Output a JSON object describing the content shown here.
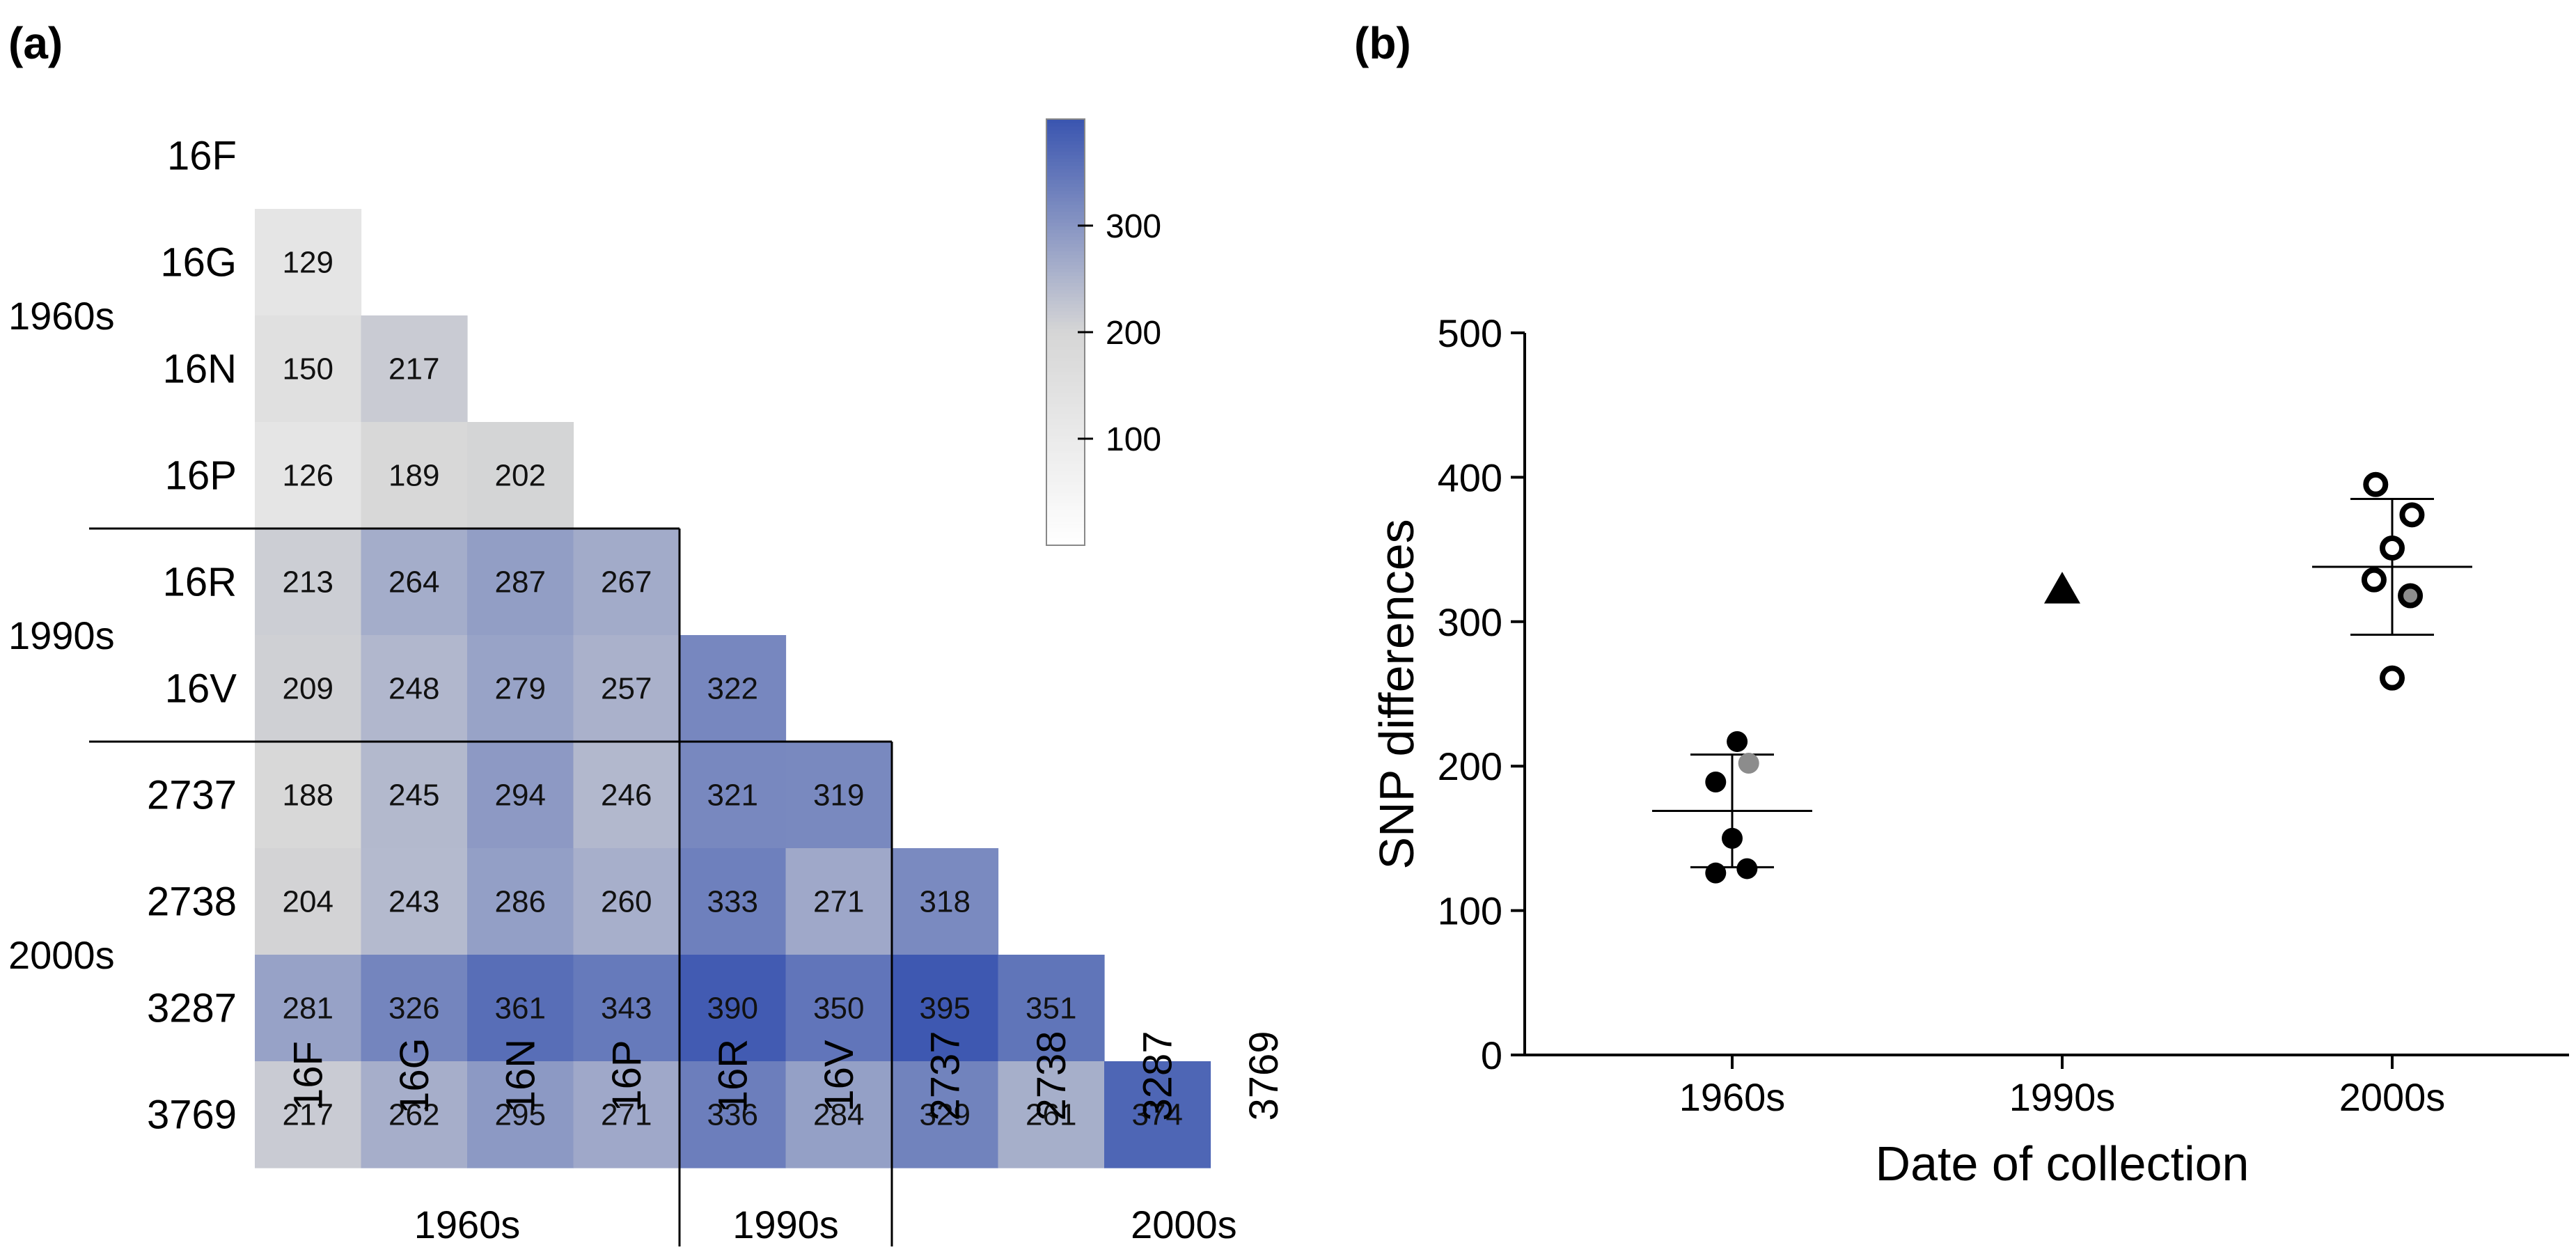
{
  "panels": {
    "a_label": "(a)",
    "b_label": "(b)"
  },
  "chart_data": [
    {
      "type": "heatmap",
      "title": "",
      "labels": [
        "16F",
        "16G",
        "16N",
        "16P",
        "16R",
        "16V",
        "2737",
        "2738",
        "3287",
        "3769"
      ],
      "groups": [
        {
          "name": "1960s",
          "members": [
            "16F",
            "16G",
            "16N",
            "16P"
          ]
        },
        {
          "name": "1990s",
          "members": [
            "16R",
            "16V"
          ]
        },
        {
          "name": "2000s",
          "members": [
            "2737",
            "2738",
            "3287",
            "3769"
          ]
        }
      ],
      "values": [
        [],
        [
          129
        ],
        [
          150,
          217
        ],
        [
          126,
          189,
          202
        ],
        [
          213,
          264,
          287,
          267
        ],
        [
          209,
          248,
          279,
          257,
          322
        ],
        [
          188,
          245,
          294,
          246,
          321,
          319
        ],
        [
          204,
          243,
          286,
          260,
          333,
          271,
          318
        ],
        [
          281,
          326,
          361,
          343,
          390,
          350,
          395,
          351
        ],
        [
          217,
          262,
          295,
          271,
          336,
          284,
          329,
          261,
          374
        ]
      ],
      "colorbar": {
        "ticks": [
          100,
          200,
          300
        ],
        "range": [
          0,
          400
        ],
        "low_color": "#ffffff",
        "mid_color": "#d6d6d6",
        "high_color": "#3a55b0"
      }
    },
    {
      "type": "scatter",
      "title": "",
      "xlabel": "Date of collection",
      "ylabel": "SNP differences",
      "categories": [
        "1960s",
        "1990s",
        "2000s"
      ],
      "ylim": [
        0,
        500
      ],
      "yticks": [
        0,
        100,
        200,
        300,
        400,
        500
      ],
      "series": [
        {
          "category": "1960s",
          "marker": "filled-circle",
          "points": [
            {
              "offset": -0.05,
              "y": 189,
              "shade": "black"
            },
            {
              "offset": 0.015,
              "y": 217,
              "shade": "black"
            },
            {
              "offset": 0.05,
              "y": 202,
              "shade": "gray"
            },
            {
              "offset": 0.0,
              "y": 150,
              "shade": "black"
            },
            {
              "offset": -0.05,
              "y": 126,
              "shade": "black"
            },
            {
              "offset": 0.045,
              "y": 129,
              "shade": "black"
            }
          ],
          "mean": 169,
          "sd_high": 208,
          "sd_low": 130
        },
        {
          "category": "1990s",
          "marker": "triangle",
          "points": [
            {
              "offset": 0.0,
              "y": 322,
              "shade": "black"
            }
          ]
        },
        {
          "category": "2000s",
          "marker": "open-circle",
          "points": [
            {
              "offset": -0.05,
              "y": 395,
              "shade": "white"
            },
            {
              "offset": 0.06,
              "y": 374,
              "shade": "white"
            },
            {
              "offset": 0.0,
              "y": 351,
              "shade": "white"
            },
            {
              "offset": -0.055,
              "y": 329,
              "shade": "white"
            },
            {
              "offset": 0.055,
              "y": 318,
              "shade": "gray"
            },
            {
              "offset": 0.0,
              "y": 261,
              "shade": "white"
            }
          ],
          "mean": 338,
          "sd_high": 385,
          "sd_low": 291
        }
      ]
    }
  ]
}
